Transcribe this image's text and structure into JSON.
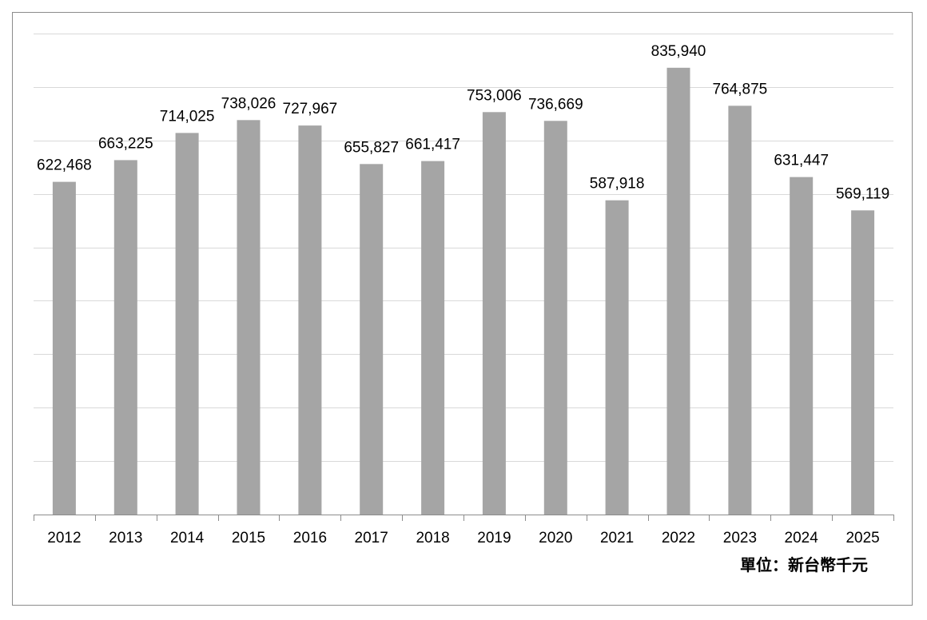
{
  "chart_data": {
    "type": "bar",
    "categories": [
      "2012",
      "2013",
      "2014",
      "2015",
      "2016",
      "2017",
      "2018",
      "2019",
      "2020",
      "2021",
      "2022",
      "2023",
      "2024",
      "2025"
    ],
    "values": [
      622468,
      663225,
      714025,
      738026,
      727967,
      655827,
      661417,
      753006,
      736669,
      587918,
      835940,
      764875,
      631447,
      569119
    ],
    "data_labels": [
      "622,468",
      "663,225",
      "714,025",
      "738,026",
      "727,967",
      "655,827",
      "661,417",
      "753,006",
      "736,669",
      "587,918",
      "835,940",
      "764,875",
      "631,447",
      "569,119"
    ],
    "unit_label": "單位：新台幣千元",
    "title": "",
    "xlabel": "",
    "ylabel": "",
    "ylim": [
      0,
      900000
    ],
    "gridlines": true,
    "y_tick_labels_shown": false,
    "legend": "none",
    "bar_color": "#a5a5a5"
  }
}
